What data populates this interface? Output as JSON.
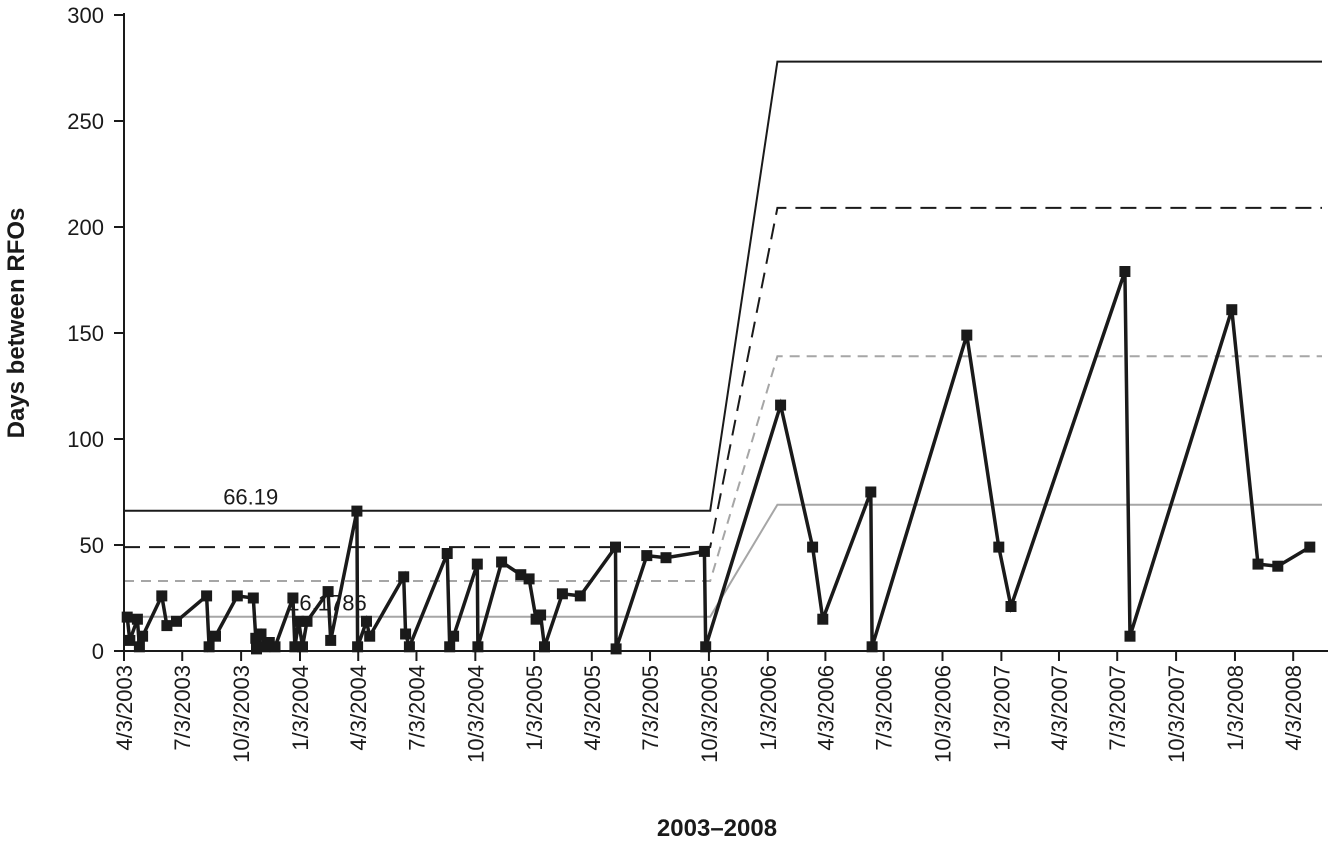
{
  "chart_data": {
    "type": "line",
    "title": "",
    "xlabel": "2003–2008",
    "ylabel": "Days between RFOs",
    "ylim": [
      0,
      300
    ],
    "yticks": [
      "0",
      "50",
      "100",
      "150",
      "200",
      "250",
      "300"
    ],
    "xlim": [
      "2003-04-03",
      "2008-05-18"
    ],
    "xticks": [
      {
        "label": "4/3/2003",
        "date": "2003-04-03"
      },
      {
        "label": "7/3/2003",
        "date": "2003-07-03"
      },
      {
        "label": "10/3/2003",
        "date": "2003-10-03"
      },
      {
        "label": "1/3/2004",
        "date": "2004-01-03"
      },
      {
        "label": "4/3/2004",
        "date": "2004-04-03"
      },
      {
        "label": "7/3/2004",
        "date": "2004-07-03"
      },
      {
        "label": "10/3/2004",
        "date": "2004-10-03"
      },
      {
        "label": "1/3/2005",
        "date": "2005-01-03"
      },
      {
        "label": "4/3/2005",
        "date": "2005-04-03"
      },
      {
        "label": "7/3/2005",
        "date": "2005-07-03"
      },
      {
        "label": "10/3/2005",
        "date": "2005-10-03"
      },
      {
        "label": "1/3/2006",
        "date": "2006-01-03"
      },
      {
        "label": "4/3/2006",
        "date": "2006-04-03"
      },
      {
        "label": "7/3/2006",
        "date": "2006-07-03"
      },
      {
        "label": "10/3/2006",
        "date": "2006-10-03"
      },
      {
        "label": "1/3/2007",
        "date": "2007-01-03"
      },
      {
        "label": "4/3/2007",
        "date": "2007-04-03"
      },
      {
        "label": "7/3/2007",
        "date": "2007-07-03"
      },
      {
        "label": "10/3/2007",
        "date": "2007-10-03"
      },
      {
        "label": "1/3/2008",
        "date": "2008-01-03"
      },
      {
        "label": "4/3/2008",
        "date": "2008-04-03"
      }
    ],
    "annotations": [
      {
        "text": "66.19",
        "date": "2003-09-05",
        "y": 66.19
      },
      {
        "text": "16.1786",
        "date": "2003-12-14",
        "y": 16.18
      }
    ],
    "series": [
      {
        "points": [
          [
            "2003-04-08",
            16
          ],
          [
            "2003-04-12",
            5
          ],
          [
            "2003-04-24",
            15
          ],
          [
            "2003-04-27",
            2
          ],
          [
            "2003-05-02",
            7
          ],
          [
            "2003-06-01",
            26
          ],
          [
            "2003-06-09",
            12
          ],
          [
            "2003-06-24",
            14
          ],
          [
            "2003-08-10",
            26
          ],
          [
            "2003-08-14",
            2
          ],
          [
            "2003-08-24",
            7
          ],
          [
            "2003-09-27",
            26
          ],
          [
            "2003-10-22",
            25
          ],
          [
            "2003-10-26",
            6
          ],
          [
            "2003-10-27",
            1
          ],
          [
            "2003-11-03",
            8
          ],
          [
            "2003-11-09",
            2
          ],
          [
            "2003-11-16",
            4
          ],
          [
            "2003-11-25",
            2
          ],
          [
            "2003-12-23",
            25
          ],
          [
            "2003-12-26",
            2
          ],
          [
            "2004-01-01",
            14
          ],
          [
            "2004-01-07",
            2
          ],
          [
            "2004-01-14",
            14
          ],
          [
            "2004-02-16",
            28
          ],
          [
            "2004-02-20",
            5
          ],
          [
            "2004-04-01",
            66
          ],
          [
            "2004-04-02",
            2
          ],
          [
            "2004-04-16",
            14
          ],
          [
            "2004-04-21",
            7
          ],
          [
            "2004-06-13",
            35
          ],
          [
            "2004-06-16",
            8
          ],
          [
            "2004-06-22",
            2
          ],
          [
            "2004-08-20",
            46
          ],
          [
            "2004-08-24",
            2
          ],
          [
            "2004-08-30",
            7
          ],
          [
            "2004-10-06",
            41
          ],
          [
            "2004-10-07",
            2
          ],
          [
            "2004-11-13",
            42
          ],
          [
            "2004-12-13",
            36
          ],
          [
            "2004-12-26",
            34
          ],
          [
            "2005-01-06",
            15
          ],
          [
            "2005-01-13",
            17
          ],
          [
            "2005-01-19",
            2
          ],
          [
            "2005-02-16",
            27
          ],
          [
            "2005-03-16",
            26
          ],
          [
            "2005-05-10",
            49
          ],
          [
            "2005-05-11",
            1
          ],
          [
            "2005-06-28",
            45
          ],
          [
            "2005-07-28",
            44
          ],
          [
            "2005-09-26",
            47
          ],
          [
            "2005-09-28",
            2
          ],
          [
            "2006-01-23",
            116
          ],
          [
            "2006-03-14",
            49
          ],
          [
            "2006-03-30",
            15
          ],
          [
            "2006-06-13",
            75
          ],
          [
            "2006-06-15",
            2
          ],
          [
            "2006-11-10",
            149
          ],
          [
            "2006-12-30",
            49
          ],
          [
            "2007-01-18",
            21
          ],
          [
            "2007-07-15",
            179
          ],
          [
            "2007-07-23",
            7
          ],
          [
            "2007-12-29",
            161
          ],
          [
            "2008-02-08",
            41
          ],
          [
            "2008-03-10",
            40
          ],
          [
            "2008-04-29",
            49
          ]
        ]
      }
    ],
    "control_lines": [
      {
        "style": "solid-black",
        "points": [
          [
            "2003-04-03",
            66.19
          ],
          [
            "2005-10-05",
            66.19
          ],
          [
            "2006-01-18",
            278
          ],
          [
            "2008-05-18",
            278
          ]
        ]
      },
      {
        "style": "dashed-black",
        "points": [
          [
            "2003-04-03",
            49
          ],
          [
            "2005-10-05",
            49
          ],
          [
            "2006-01-18",
            209
          ],
          [
            "2008-05-18",
            209
          ]
        ]
      },
      {
        "style": "dashed-gray",
        "points": [
          [
            "2003-04-03",
            33
          ],
          [
            "2005-10-05",
            33
          ],
          [
            "2006-01-18",
            139
          ],
          [
            "2008-05-18",
            139
          ]
        ]
      },
      {
        "style": "solid-gray",
        "points": [
          [
            "2003-04-03",
            16.18
          ],
          [
            "2005-10-05",
            16.18
          ],
          [
            "2006-01-18",
            69
          ],
          [
            "2008-05-18",
            69
          ]
        ]
      }
    ],
    "colors": {
      "series": "#1a1a1a",
      "ucl": "#1a1a1a",
      "two_sigma": "#1a1a1a",
      "one_sigma": "#a6a6a6",
      "center": "#a6a6a6",
      "axis": "#1a1a1a"
    },
    "grid": false,
    "legend": "none"
  }
}
